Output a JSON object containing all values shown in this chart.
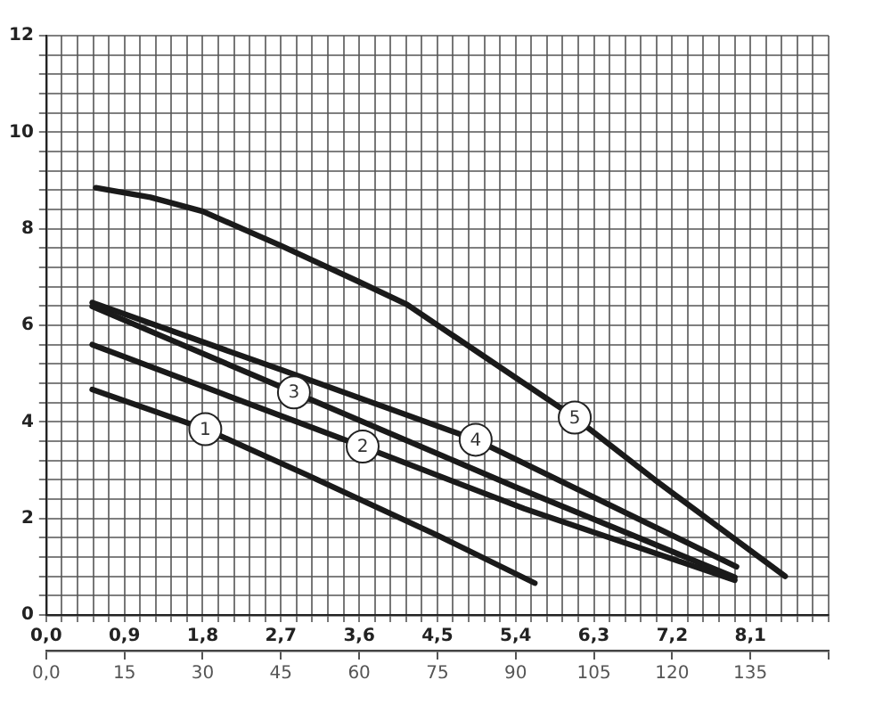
{
  "chart_data": {
    "type": "line",
    "grid": true,
    "xlim": [
      0,
      9
    ],
    "xticks": [
      {
        "value": 0,
        "label": "0,0"
      },
      {
        "value": 0.18,
        "label": null
      },
      {
        "value": 0.36,
        "label": null
      },
      {
        "value": 0.54,
        "label": null
      },
      {
        "value": 0.72,
        "label": null
      },
      {
        "value": 0.9,
        "label": "0,9"
      },
      {
        "value": 1.08,
        "label": null
      },
      {
        "value": 1.26,
        "label": null
      },
      {
        "value": 1.44,
        "label": null
      },
      {
        "value": 1.62,
        "label": null
      },
      {
        "value": 1.8,
        "label": "1,8"
      },
      {
        "value": 1.98,
        "label": null
      },
      {
        "value": 2.16,
        "label": null
      },
      {
        "value": 2.34,
        "label": null
      },
      {
        "value": 2.52,
        "label": null
      },
      {
        "value": 2.7,
        "label": "2,7"
      },
      {
        "value": 2.88,
        "label": null
      },
      {
        "value": 3.06,
        "label": null
      },
      {
        "value": 3.24,
        "label": null
      },
      {
        "value": 3.42,
        "label": null
      },
      {
        "value": 3.6,
        "label": "3,6"
      },
      {
        "value": 3.78,
        "label": null
      },
      {
        "value": 3.96,
        "label": null
      },
      {
        "value": 4.14,
        "label": null
      },
      {
        "value": 4.32,
        "label": null
      },
      {
        "value": 4.5,
        "label": "4,5"
      },
      {
        "value": 4.68,
        "label": null
      },
      {
        "value": 4.86,
        "label": null
      },
      {
        "value": 5.04,
        "label": null
      },
      {
        "value": 5.22,
        "label": null
      },
      {
        "value": 5.4,
        "label": "5,4"
      },
      {
        "value": 5.58,
        "label": null
      },
      {
        "value": 5.76,
        "label": null
      },
      {
        "value": 5.94,
        "label": null
      },
      {
        "value": 6.12,
        "label": null
      },
      {
        "value": 6.3,
        "label": "6,3"
      },
      {
        "value": 6.48,
        "label": null
      },
      {
        "value": 6.66,
        "label": null
      },
      {
        "value": 6.84,
        "label": null
      },
      {
        "value": 7.02,
        "label": null
      },
      {
        "value": 7.2,
        "label": "7,2"
      },
      {
        "value": 7.38,
        "label": null
      },
      {
        "value": 7.56,
        "label": null
      },
      {
        "value": 7.74,
        "label": null
      },
      {
        "value": 7.92,
        "label": null
      },
      {
        "value": 8.1,
        "label": "8,1"
      },
      {
        "value": 8.28,
        "label": null
      },
      {
        "value": 8.46,
        "label": null
      },
      {
        "value": 8.64,
        "label": null
      },
      {
        "value": 8.82,
        "label": null
      },
      {
        "value": 9,
        "label": null
      }
    ],
    "x2lim": [
      0,
      150
    ],
    "x2ticks": [
      {
        "value": 0,
        "label": "0,0"
      },
      15,
      30,
      45,
      60,
      75,
      90,
      105,
      120,
      135,
      {
        "value": 150,
        "label": null
      }
    ],
    "ylim": [
      0,
      12
    ],
    "yticks": [
      0,
      {
        "value": 0.4,
        "label": null
      },
      {
        "value": 0.8,
        "label": null
      },
      {
        "value": 1.2,
        "label": null
      },
      {
        "value": 1.6,
        "label": null
      },
      2,
      {
        "value": 2.4,
        "label": null
      },
      {
        "value": 2.8,
        "label": null
      },
      {
        "value": 3.2,
        "label": null
      },
      {
        "value": 3.6,
        "label": null
      },
      4,
      {
        "value": 4.4,
        "label": null
      },
      {
        "value": 4.8,
        "label": null
      },
      {
        "value": 5.2,
        "label": null
      },
      {
        "value": 5.6,
        "label": null
      },
      6,
      {
        "value": 6.4,
        "label": null
      },
      {
        "value": 6.8,
        "label": null
      },
      {
        "value": 7.2,
        "label": null
      },
      {
        "value": 7.6,
        "label": null
      },
      8,
      {
        "value": 8.4,
        "label": null
      },
      {
        "value": 8.8,
        "label": null
      },
      {
        "value": 9.2,
        "label": null
      },
      {
        "value": 9.6,
        "label": null
      },
      10,
      {
        "value": 10.4,
        "label": null
      },
      {
        "value": 10.8,
        "label": null
      },
      {
        "value": 11.2,
        "label": null
      },
      {
        "value": 11.6,
        "label": null
      },
      12
    ],
    "series": [
      {
        "color": "#1a1a1a",
        "x": [
          0.53,
          1.83,
          3.0,
          4.5,
          5.62
        ],
        "values": [
          4.67,
          3.85,
          2.9,
          1.65,
          0.66
        ]
      },
      {
        "color": "#1a1a1a",
        "x": [
          0.53,
          2.0,
          3.64,
          5.5,
          7.92
        ],
        "values": [
          5.6,
          4.6,
          3.49,
          2.2,
          0.72
        ]
      },
      {
        "color": "#1a1a1a",
        "x": [
          0.53,
          2.85,
          5.4,
          7.92
        ],
        "values": [
          6.39,
          4.61,
          2.65,
          0.78
        ]
      },
      {
        "color": "#1a1a1a",
        "x": [
          0.53,
          2.7,
          4.94,
          7.94
        ],
        "values": [
          6.47,
          5.08,
          3.63,
          1.0
        ]
      },
      {
        "color": "#1a1a1a",
        "x": [
          0.57,
          1.2,
          1.8,
          2.7,
          3.6,
          4.15,
          5.0,
          6.08,
          7.0,
          8.5
        ],
        "values": [
          8.85,
          8.65,
          8.36,
          7.65,
          6.9,
          6.43,
          5.4,
          4.09,
          2.8,
          0.8
        ]
      }
    ],
    "annotations": [
      {
        "text": "1",
        "x": 1.83,
        "y": 3.85
      },
      {
        "text": "2",
        "x": 3.64,
        "y": 3.49
      },
      {
        "text": "3",
        "x": 2.85,
        "y": 4.61
      },
      {
        "text": "4",
        "x": 4.94,
        "y": 3.63
      },
      {
        "text": "5",
        "x": 6.08,
        "y": 4.09
      }
    ]
  }
}
